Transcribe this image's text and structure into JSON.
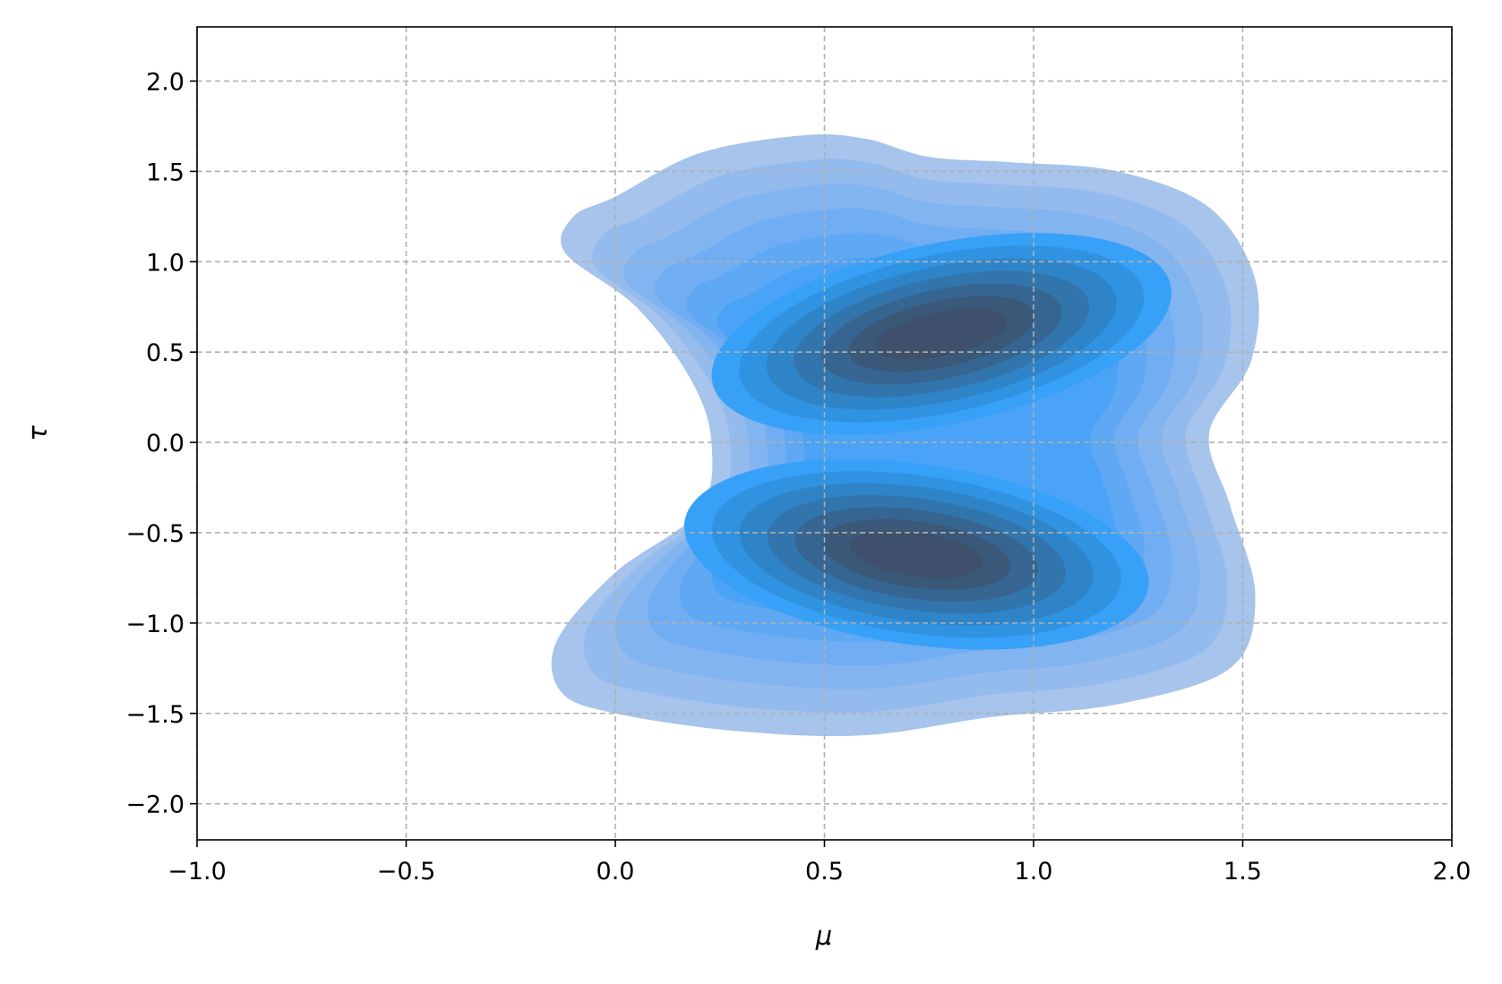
{
  "chart_data": {
    "type": "kde",
    "xlabel": "μ",
    "ylabel": "τ",
    "xlim": [
      -1.0,
      2.0
    ],
    "ylim": [
      -2.2,
      2.3
    ],
    "xticks": [
      {
        "value": -1.0,
        "label": "−1.0"
      },
      {
        "value": -0.5,
        "label": "−0.5"
      },
      {
        "value": 0.0,
        "label": "0.0"
      },
      {
        "value": 0.5,
        "label": "0.5"
      },
      {
        "value": 1.0,
        "label": "1.0"
      },
      {
        "value": 1.5,
        "label": "1.5"
      },
      {
        "value": 2.0,
        "label": "2.0"
      }
    ],
    "yticks": [
      {
        "value": -2.0,
        "label": "−2.0"
      },
      {
        "value": -1.5,
        "label": "−1.5"
      },
      {
        "value": -1.0,
        "label": "−1.0"
      },
      {
        "value": -0.5,
        "label": "−0.5"
      },
      {
        "value": 0.0,
        "label": "0.0"
      },
      {
        "value": 0.5,
        "label": "0.5"
      },
      {
        "value": 1.0,
        "label": "1.0"
      },
      {
        "value": 1.5,
        "label": "1.5"
      },
      {
        "value": 2.0,
        "label": "2.0"
      }
    ],
    "grid": true,
    "colors": [
      "#a6c4ec",
      "#93bbee",
      "#82b4f0",
      "#70adf2",
      "#5ea8f4",
      "#4aa3f6",
      "#37a0f7",
      "#2f93e2",
      "#2f84c8",
      "#3275ac",
      "#366592",
      "#3a5878",
      "#3e506b"
    ]
  }
}
